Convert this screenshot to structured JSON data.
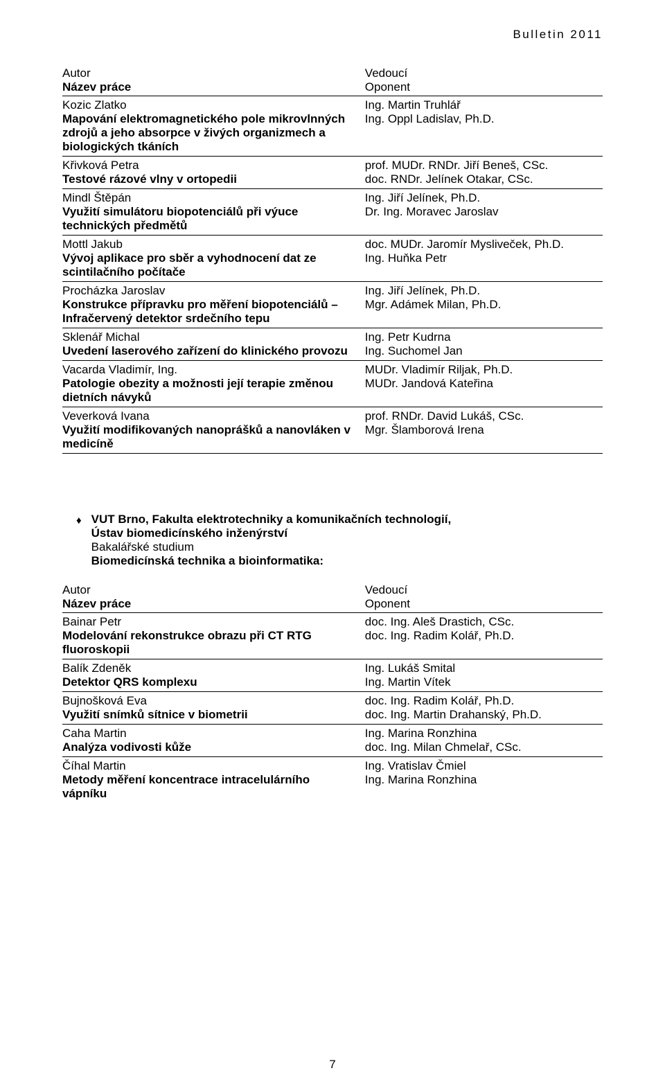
{
  "doc_header": "Bulletin 2011",
  "column_labels": {
    "author": "Autor",
    "title": "Název práce",
    "supervisor": "Vedoucí",
    "opponent": "Oponent"
  },
  "entries1": [
    {
      "author": "Kozic Zlatko",
      "title": "Mapování elektromagnetického pole mikrovlnných zdrojů a jeho absorpce v živých organizmech a biologických tkáních",
      "supervisor": "Ing. Martin Truhlář",
      "opponent": "Ing. Oppl Ladislav, Ph.D."
    },
    {
      "author": "Křivková Petra",
      "title": "Testové rázové vlny v ortopedii",
      "supervisor": "prof. MUDr. RNDr. Jiří Beneš, CSc.",
      "opponent": "doc. RNDr. Jelínek Otakar, CSc."
    },
    {
      "author": "Mindl Štěpán",
      "title": "Využití simulátoru biopotenciálů při výuce technických předmětů",
      "supervisor": "Ing. Jiří Jelínek, Ph.D.",
      "opponent": "Dr. Ing. Moravec Jaroslav"
    },
    {
      "author": "Mottl Jakub",
      "title": "Vývoj aplikace pro sběr a vyhodnocení dat ze scintilačního počítače",
      "supervisor": "doc. MUDr. Jaromír Mysliveček, Ph.D.",
      "opponent": "Ing. Huňka Petr"
    },
    {
      "author": "Procházka Jaroslav",
      "title": "Konstrukce přípravku pro měření biopotenciálů – Infračervený detektor srdečního tepu",
      "supervisor": "Ing. Jiří Jelínek, Ph.D.",
      "opponent": "Mgr. Adámek Milan, Ph.D."
    },
    {
      "author": "Sklenář Michal",
      "title": "Uvedení laserového zařízení do klinického provozu",
      "supervisor": "Ing. Petr Kudrna",
      "opponent": "Ing. Suchomel Jan"
    },
    {
      "author": "Vacarda Vladimír, Ing.",
      "title": "Patologie obezity a možnosti její terapie změnou dietních návyků",
      "supervisor": "MUDr. Vladimír Riljak, Ph.D.",
      "opponent": "MUDr. Jandová Kateřina"
    },
    {
      "author": "Veverková Ivana",
      "title": "Využití modifikovaných nanoprášků a nanovláken v medicíně",
      "supervisor": "prof. RNDr. David Lukáš, CSc.",
      "opponent": "Mgr. Šlamborová Irena"
    }
  ],
  "section2": {
    "line1": "VUT Brno, Fakulta elektrotechniky a komunikačních technologií,",
    "line2": "Ústav biomedicínského inženýrství",
    "line3": "Bakalářské studium",
    "line4": "Biomedicínská technika a bioinformatika:"
  },
  "entries2": [
    {
      "author": "Bainar Petr",
      "title": "Modelování rekonstrukce obrazu při CT RTG fluoroskopii",
      "supervisor": "doc. Ing. Aleš Drastich, CSc.",
      "opponent": "doc. Ing. Radim Kolář, Ph.D."
    },
    {
      "author": "Balík Zdeněk",
      "title": "Detektor QRS komplexu",
      "supervisor": "Ing. Lukáš Smital",
      "opponent": "Ing. Martin Vítek"
    },
    {
      "author": "Bujnošková Eva",
      "title": "Využití snímků sítnice v biometrii",
      "supervisor": "doc. Ing. Radim Kolář, Ph.D.",
      "opponent": "doc. Ing. Martin Drahanský, Ph.D."
    },
    {
      "author": "Caha Martin",
      "title": "Analýza vodivosti kůže",
      "supervisor": "Ing. Marina Ronzhina",
      "opponent": "doc. Ing. Milan Chmelař, CSc."
    },
    {
      "author": "Číhal Martin",
      "title": "Metody měření koncentrace intracelulárního vápníku",
      "supervisor": "Ing. Vratislav Čmiel",
      "opponent": "Ing. Marina Ronzhina"
    }
  ],
  "page_number": "7"
}
